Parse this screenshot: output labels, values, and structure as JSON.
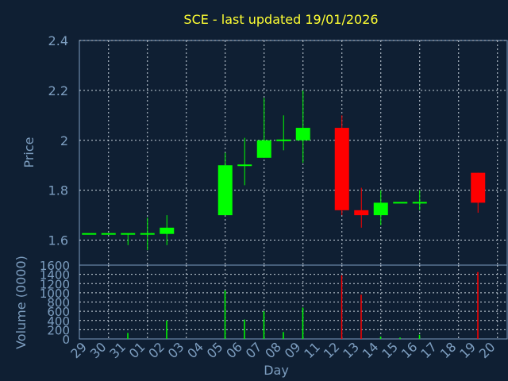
{
  "title": "SCE - last updated 19/01/2026",
  "colors": {
    "background": "#0f1f33",
    "title": "#ffff33",
    "axis": "#7d9ec0",
    "up": "#00ff00",
    "down": "#ff0000",
    "grid": "#c8d2dc"
  },
  "chart_data": [
    {
      "type": "candlestick",
      "ylabel": "Price",
      "ylim": [
        1.5,
        2.4
      ],
      "yticks": [
        "1.6",
        "1.8",
        "2",
        "2.2",
        "2.4"
      ],
      "grid": true,
      "x": [
        "29",
        "30",
        "31",
        "01",
        "02",
        "05",
        "06",
        "07",
        "08",
        "09",
        "12",
        "13",
        "14",
        "15",
        "16",
        "19"
      ],
      "open": [
        1.625,
        1.625,
        1.625,
        1.625,
        1.625,
        1.7,
        1.9,
        1.93,
        2.0,
        2.0,
        2.05,
        1.72,
        1.7,
        1.75,
        1.75,
        1.87
      ],
      "close": [
        1.625,
        1.625,
        1.625,
        1.625,
        1.65,
        1.9,
        1.9,
        2.0,
        2.0,
        2.05,
        1.72,
        1.7,
        1.75,
        1.75,
        1.75,
        1.75
      ],
      "high": [
        1.625,
        1.625,
        1.625,
        1.69,
        1.7,
        1.95,
        2.01,
        2.17,
        2.1,
        2.2,
        2.1,
        1.81,
        1.8,
        1.75,
        1.8,
        1.87
      ],
      "low": [
        1.625,
        1.625,
        1.58,
        1.56,
        1.58,
        1.7,
        1.82,
        1.93,
        1.96,
        1.91,
        1.7,
        1.65,
        1.66,
        1.75,
        1.72,
        1.71
      ]
    },
    {
      "type": "bar",
      "xlabel": "Day",
      "ylabel": "Volume (0000)",
      "ylim": [
        0,
        1600
      ],
      "yticks": [
        "0",
        "200",
        "400",
        "600",
        "800",
        "1000",
        "1200",
        "1400",
        "1600"
      ],
      "grid": true,
      "x_labels": [
        "29",
        "30",
        "31",
        "01",
        "02",
        "03",
        "04",
        "05",
        "06",
        "07",
        "08",
        "09",
        "11",
        "12",
        "13",
        "14",
        "15",
        "16",
        "17",
        "18",
        "19",
        "20"
      ],
      "x": [
        "29",
        "30",
        "31",
        "01",
        "02",
        "05",
        "06",
        "07",
        "08",
        "09",
        "12",
        "13",
        "14",
        "15",
        "16",
        "19"
      ],
      "values": [
        0,
        0,
        130,
        0,
        400,
        1050,
        420,
        600,
        150,
        680,
        1380,
        960,
        50,
        30,
        90,
        1450
      ]
    }
  ]
}
